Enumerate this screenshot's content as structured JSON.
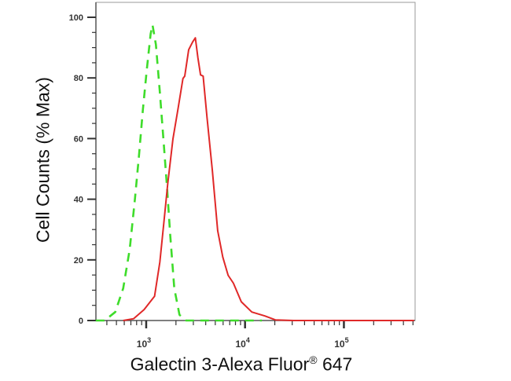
{
  "chart_data": {
    "type": "line",
    "title": "",
    "xlabel": "Galectin 3-Alexa Fluor",
    "xlabel_registered": "®",
    "xlabel_suffix": "647",
    "ylabel": "Cell Counts (% Max)",
    "x_scale": "log",
    "xlim": [
      310,
      525000
    ],
    "ylim": [
      0,
      100
    ],
    "grid": false,
    "legend": "none",
    "y_ticks": [
      "0",
      "20",
      "40",
      "60",
      "80",
      "100"
    ],
    "x_ticks": [
      {
        "base": "10",
        "exp": "3",
        "value": 1000
      },
      {
        "base": "10",
        "exp": "4",
        "value": 10000
      },
      {
        "base": "10",
        "exp": "5",
        "value": 100000
      }
    ],
    "series": [
      {
        "style": "dashed",
        "color": "#3edc2a",
        "x": [
          309,
          380,
          486,
          585,
          681,
          769,
          843,
          925,
          1012,
          1109,
          1159,
          1253,
          1374,
          1507,
          1629,
          1754,
          1923,
          2173,
          2535,
          14791
        ],
        "y": [
          0,
          0,
          2.8,
          10.6,
          23.5,
          40,
          53.8,
          69.4,
          82.4,
          94.5,
          97.5,
          91,
          75.4,
          58,
          43.4,
          27.9,
          10.6,
          1.9,
          0,
          0
        ]
      },
      {
        "style": "solid",
        "color": "#e02828",
        "x": [
          585,
          745,
          953,
          1216,
          1374,
          1507,
          1652,
          1866,
          2109,
          2355,
          2455,
          2692,
          2951,
          3141,
          3334,
          3548,
          3767,
          4130,
          4667,
          5284,
          5957,
          6745,
          7621,
          9162,
          11695,
          15849,
          20277,
          30903,
          512861
        ],
        "y": [
          0,
          0.6,
          3.6,
          8,
          19.2,
          32.2,
          45.2,
          59.9,
          70.2,
          79.8,
          80.6,
          89.3,
          91.9,
          93.2,
          86.7,
          81,
          80.6,
          66.8,
          49.5,
          29.6,
          20.9,
          14.9,
          12.3,
          6.2,
          2.8,
          1.5,
          0.2,
          0,
          0
        ]
      }
    ]
  }
}
